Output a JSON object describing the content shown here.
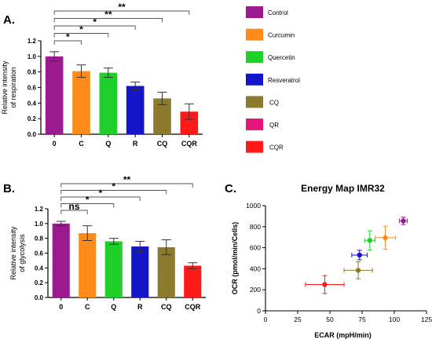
{
  "panel_labels": {
    "a": "A.",
    "b": "B.",
    "c": "C."
  },
  "legend": [
    {
      "label": "Control",
      "color": "#9b1b8e"
    },
    {
      "label": "Curcumin",
      "color": "#ff8c1a"
    },
    {
      "label": "Quercetin",
      "color": "#1fcf2a"
    },
    {
      "label": "Resveratrol",
      "color": "#1414c8"
    },
    {
      "label": "CQ",
      "color": "#8c7a2e"
    },
    {
      "label": "QR",
      "color": "#e8157a"
    },
    {
      "label": "CQR",
      "color": "#ff1a1a"
    }
  ],
  "chart_data": [
    {
      "type": "bar",
      "panel": "A.",
      "categories": [
        "0",
        "C",
        "Q",
        "R",
        "CQ",
        "CQR"
      ],
      "values": [
        1.0,
        0.81,
        0.79,
        0.62,
        0.46,
        0.29
      ],
      "errors": [
        0.06,
        0.08,
        0.06,
        0.05,
        0.08,
        0.1
      ],
      "colors": [
        "#9b1b8e",
        "#ff8c1a",
        "#1fcf2a",
        "#1414c8",
        "#8c7a2e",
        "#ff1a1a"
      ],
      "ylabel": "Relative intensity\nof respiration",
      "ylim": [
        0,
        1.2
      ],
      "yticks": [
        "0.0",
        "0.2",
        "0.4",
        "0.6",
        "0.8",
        "1.0",
        "1.2"
      ],
      "grid": false,
      "significance": [
        {
          "from": "0",
          "to": "C",
          "label": "*"
        },
        {
          "from": "0",
          "to": "Q",
          "label": "*"
        },
        {
          "from": "0",
          "to": "R",
          "label": "*"
        },
        {
          "from": "0",
          "to": "CQ",
          "label": "**"
        },
        {
          "from": "0",
          "to": "CQR",
          "label": "**"
        }
      ]
    },
    {
      "type": "bar",
      "panel": "B.",
      "categories": [
        "0",
        "C",
        "Q",
        "R",
        "CQ",
        "CQR"
      ],
      "values": [
        1.0,
        0.87,
        0.76,
        0.69,
        0.68,
        0.43
      ],
      "errors": [
        0.03,
        0.1,
        0.04,
        0.07,
        0.1,
        0.04
      ],
      "colors": [
        "#9b1b8e",
        "#ff8c1a",
        "#1fcf2a",
        "#1414c8",
        "#8c7a2e",
        "#ff1a1a"
      ],
      "ylabel": "Relative intensity\nof glycolysis",
      "ylim": [
        0,
        1.2
      ],
      "yticks": [
        "0.0",
        "0.2",
        "0.4",
        "0.6",
        "0.8",
        "1.0",
        "1.2"
      ],
      "grid": false,
      "significance": [
        {
          "from": "0",
          "to": "C",
          "label": "ns"
        },
        {
          "from": "0",
          "to": "Q",
          "label": "*"
        },
        {
          "from": "0",
          "to": "R",
          "label": "*"
        },
        {
          "from": "0",
          "to": "CQ",
          "label": "*"
        },
        {
          "from": "0",
          "to": "CQR",
          "label": "**"
        }
      ]
    },
    {
      "type": "scatter",
      "panel": "C.",
      "title": "Energy Map IMR32",
      "xlabel": "ECAR (mpH/min)",
      "ylabel": "OCR (pmol/min/Cells)",
      "xlim": [
        0,
        125
      ],
      "ylim": [
        0,
        1000
      ],
      "xticks": [
        0,
        25,
        50,
        75,
        100,
        125
      ],
      "yticks": [
        0,
        200,
        400,
        600,
        800,
        1000
      ],
      "grid": false,
      "points": [
        {
          "x": 107,
          "y": 855,
          "xerr": 3,
          "yerr": 35,
          "color": "#9b1b8e"
        },
        {
          "x": 93,
          "y": 695,
          "xerr": 8,
          "yerr": 110,
          "color": "#ff8c1a"
        },
        {
          "x": 81,
          "y": 670,
          "xerr": 4,
          "yerr": 90,
          "color": "#1fcf2a"
        },
        {
          "x": 73,
          "y": 530,
          "xerr": 6,
          "yerr": 45,
          "color": "#1414c8"
        },
        {
          "x": 72,
          "y": 385,
          "xerr": 11,
          "yerr": 80,
          "color": "#8c7a2e"
        },
        {
          "x": 46,
          "y": 250,
          "xerr": 15,
          "yerr": 85,
          "color": "#ff1a1a"
        }
      ]
    }
  ]
}
